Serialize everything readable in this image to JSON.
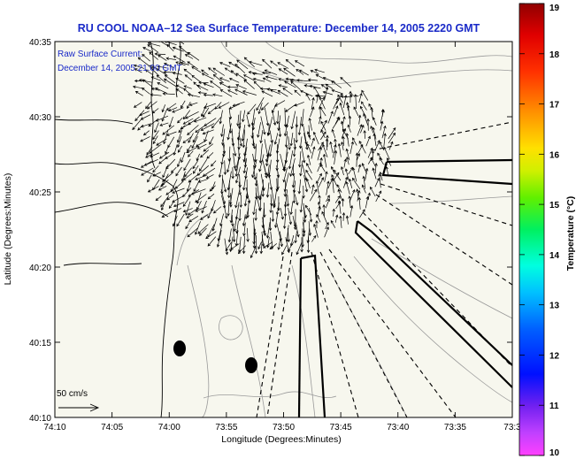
{
  "title": "RU COOL  NOAA–12  Sea Surface Temperature:  December 14, 2005 2220 GMT",
  "annotation": {
    "line1": "Raw Surface Current:",
    "line2": "December 14, 2005 21:00 GMT"
  },
  "scale_label": "50 cm/s",
  "xlabel": "Longitude (Degrees:Minutes)",
  "ylabel": "Latitude (Degrees:Minutes)",
  "x_ticks": [
    "74:10",
    "74:05",
    "74:00",
    "73:55",
    "73:50",
    "73:45",
    "73:40",
    "73:35",
    "73:3"
  ],
  "y_ticks": [
    "40:35",
    "40:30",
    "40:25",
    "40:20",
    "40:15",
    "40:10"
  ],
  "colorbar": {
    "label": "Temperature (°C)",
    "ticks": [
      "19",
      "18",
      "17",
      "16",
      "15",
      "14",
      "13",
      "12",
      "11",
      "10"
    ],
    "min": 10,
    "max": 19
  },
  "colors": {
    "title": "#1a2ac8",
    "annotation": "#1a2ac8",
    "land": "#f7f7ee",
    "ink": "#000000"
  }
}
